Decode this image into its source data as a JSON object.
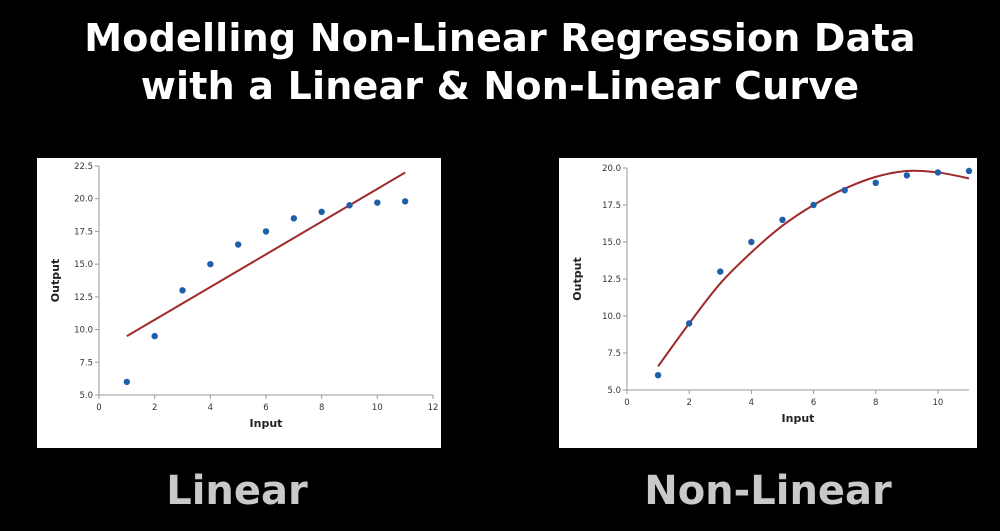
{
  "title_line1": "Modelling Non-Linear Regression Data",
  "title_line2": "with a Linear & Non-Linear Curve",
  "captions": {
    "left": "Linear",
    "right": "Non-Linear"
  },
  "colors": {
    "background": "#000000",
    "point": "#1f5fa8",
    "fit": "#a02a2a",
    "panel": "#ffffff"
  },
  "chart_data": [
    {
      "type": "scatter",
      "xlabel": "Input",
      "ylabel": "Output",
      "xlim": [
        0,
        12
      ],
      "ylim": [
        5.0,
        22.5
      ],
      "xticks": [
        0,
        2,
        4,
        6,
        8,
        10,
        12
      ],
      "yticks": [
        5.0,
        7.5,
        10.0,
        12.5,
        15.0,
        17.5,
        20.0,
        22.5
      ],
      "points": {
        "x": [
          1,
          2,
          3,
          4,
          5,
          6,
          7,
          8,
          9,
          10,
          11
        ],
        "y": [
          6.0,
          9.5,
          13.0,
          15.0,
          16.5,
          17.5,
          18.5,
          19.0,
          19.5,
          19.7,
          19.8
        ]
      },
      "fit": {
        "kind": "linear",
        "x": [
          1,
          11
        ],
        "y": [
          9.5,
          22.0
        ]
      }
    },
    {
      "type": "scatter",
      "xlabel": "Input",
      "ylabel": "Output",
      "xlim": [
        0,
        11
      ],
      "ylim": [
        5.0,
        20.0
      ],
      "xticks": [
        0,
        2,
        4,
        6,
        8,
        10
      ],
      "yticks": [
        5.0,
        7.5,
        10.0,
        12.5,
        15.0,
        17.5,
        20.0
      ],
      "points": {
        "x": [
          1,
          2,
          3,
          4,
          5,
          6,
          7,
          8,
          9,
          10,
          11
        ],
        "y": [
          6.0,
          9.5,
          13.0,
          15.0,
          16.5,
          17.5,
          18.5,
          19.0,
          19.5,
          19.7,
          19.8
        ]
      },
      "fit": {
        "kind": "polynomial",
        "x": [
          1,
          2,
          3,
          4,
          5,
          6,
          7,
          8,
          9,
          10,
          11
        ],
        "y": [
          6.6,
          9.5,
          12.2,
          14.3,
          16.1,
          17.5,
          18.6,
          19.4,
          19.8,
          19.7,
          19.3
        ]
      }
    }
  ]
}
